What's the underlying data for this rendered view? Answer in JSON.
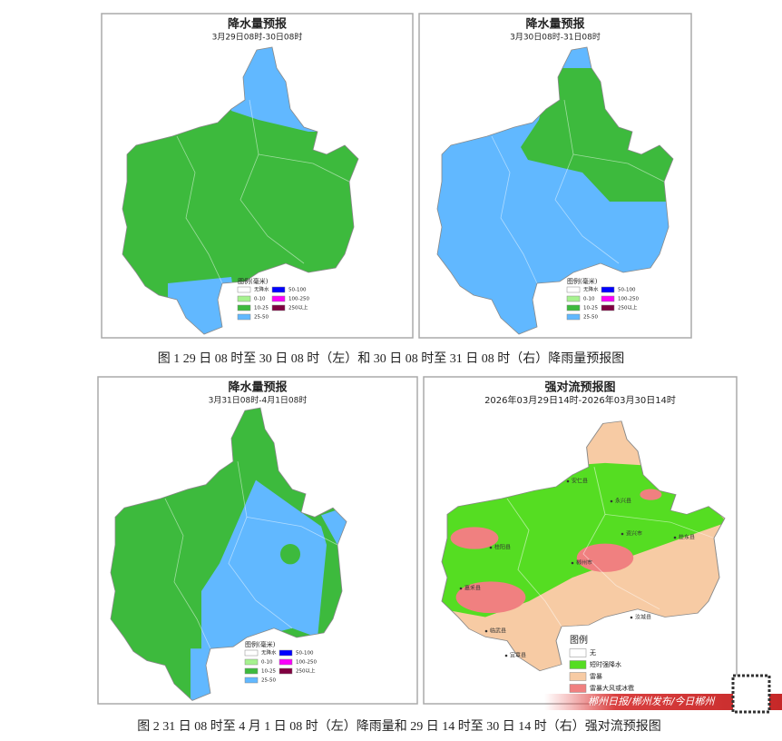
{
  "figures": [
    {
      "title": "降水量预报",
      "subtitle": "3月29日08时-30日08时",
      "legend_title": "图例(毫米)",
      "legend": [
        {
          "label": "无降水",
          "color": "#ffffff"
        },
        {
          "label": "0-10",
          "color": "#a6f28f"
        },
        {
          "label": "10-25",
          "color": "#3dba3d"
        },
        {
          "label": "25-50",
          "color": "#61b8ff"
        },
        {
          "label": "50-100",
          "color": "#0000fe"
        },
        {
          "label": "100-250",
          "color": "#fa00fa"
        },
        {
          "label": "250以上",
          "color": "#800040"
        }
      ]
    },
    {
      "title": "降水量预报",
      "subtitle": "3月30日08时-31日08时",
      "legend_title": "图例(毫米)",
      "legend": [
        {
          "label": "无降水",
          "color": "#ffffff"
        },
        {
          "label": "0-10",
          "color": "#a6f28f"
        },
        {
          "label": "10-25",
          "color": "#3dba3d"
        },
        {
          "label": "25-50",
          "color": "#61b8ff"
        },
        {
          "label": "50-100",
          "color": "#0000fe"
        },
        {
          "label": "100-250",
          "color": "#fa00fa"
        },
        {
          "label": "250以上",
          "color": "#800040"
        }
      ]
    },
    {
      "title": "降水量预报",
      "subtitle": "3月31日08时-4月1日08时",
      "legend_title": "图例(毫米)",
      "legend": [
        {
          "label": "无降水",
          "color": "#ffffff"
        },
        {
          "label": "0-10",
          "color": "#a6f28f"
        },
        {
          "label": "10-25",
          "color": "#3dba3d"
        },
        {
          "label": "25-50",
          "color": "#61b8ff"
        },
        {
          "label": "50-100",
          "color": "#0000fe"
        },
        {
          "label": "100-250",
          "color": "#fa00fa"
        },
        {
          "label": "250以上",
          "color": "#800040"
        }
      ]
    },
    {
      "title": "强对流预报图",
      "subtitle": "2026年03月29日14时-2026年03月30日14时",
      "legend_title": "图例",
      "legend": [
        {
          "label": "无",
          "color": "#ffffff"
        },
        {
          "label": "短时强降水",
          "color": "#55dd22"
        },
        {
          "label": "雷暴",
          "color": "#f7cba4"
        },
        {
          "label": "雷暴大风或冰雹",
          "color": "#f08080"
        }
      ],
      "places": [
        "安仁县",
        "永兴县",
        "资兴市",
        "桂东县",
        "郴州市",
        "桂阳县",
        "嘉禾县",
        "临武县",
        "宜章县",
        "汝城县"
      ]
    }
  ],
  "captions": [
    "图 1 29 日 08 时至 30 日 08 时（左）和 30 日 08 时至 31 日 08 时（右）降雨量预报图",
    "图 2 31 日 08 时至 4 月 1 日 08 时（左）降雨量和 29 日 14 时至 30 日 14 时（右）强对流预报图"
  ],
  "watermark": "郴州日报/郴州发布/今日郴州"
}
